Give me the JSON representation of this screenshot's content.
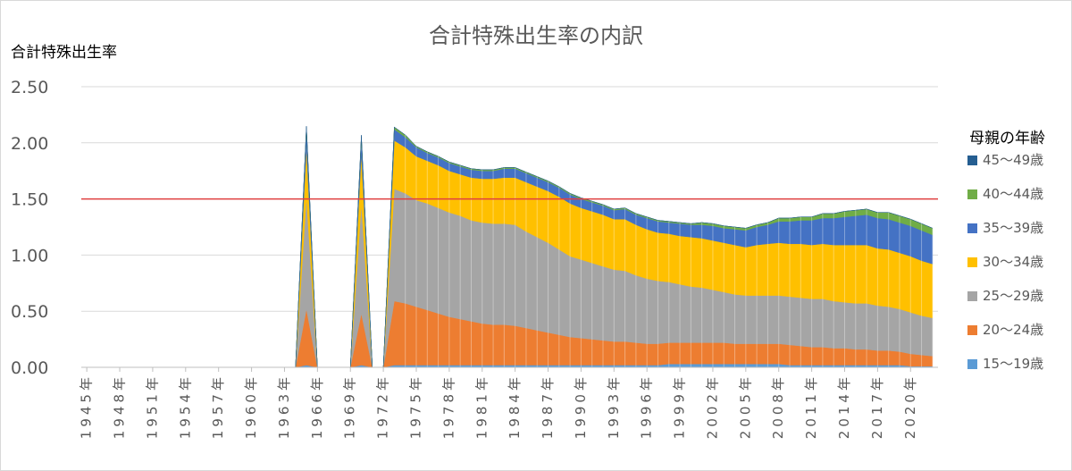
{
  "chart_data": {
    "type": "area",
    "stacked": true,
    "title": "合計特殊出生率の内訳",
    "ylabel": "合計特殊出生率",
    "ylim": [
      0,
      2.5
    ],
    "yticks": [
      "0.00",
      "0.50",
      "1.00",
      "1.50",
      "2.00",
      "2.50"
    ],
    "reference_line": {
      "value": 1.5,
      "color": "#e04040"
    },
    "grid": true,
    "legend_title": "母親の年齢",
    "legend_position": "right",
    "x_start": 1945,
    "x_end": 2022,
    "x_tick_labels": [
      "1945年",
      "1948年",
      "1951年",
      "1954年",
      "1957年",
      "1960年",
      "1963年",
      "1966年",
      "1969年",
      "1972年",
      "1975年",
      "1978年",
      "1981年",
      "1984年",
      "1987年",
      "1990年",
      "1993年",
      "1996年",
      "1999年",
      "2002年",
      "2005年",
      "2008年",
      "2011年",
      "2014年",
      "2017年",
      "2020年"
    ],
    "x_tick_step": 3,
    "data_years": [
      1965,
      1970,
      1973,
      1974,
      1975,
      1976,
      1977,
      1978,
      1979,
      1980,
      1981,
      1982,
      1983,
      1984,
      1985,
      1986,
      1987,
      1988,
      1989,
      1990,
      1991,
      1992,
      1993,
      1994,
      1995,
      1996,
      1997,
      1998,
      1999,
      2000,
      2001,
      2002,
      2003,
      2004,
      2005,
      2006,
      2007,
      2008,
      2009,
      2010,
      2011,
      2012,
      2013,
      2014,
      2015,
      2016,
      2017,
      2018,
      2019,
      2020,
      2021,
      2022
    ],
    "series": [
      {
        "name": "15〜19歳",
        "color": "#5b9bd5",
        "values": [
          0.02,
          0.02,
          0.02,
          0.02,
          0.02,
          0.02,
          0.02,
          0.02,
          0.02,
          0.02,
          0.02,
          0.02,
          0.02,
          0.02,
          0.02,
          0.02,
          0.02,
          0.02,
          0.02,
          0.02,
          0.02,
          0.02,
          0.02,
          0.02,
          0.02,
          0.02,
          0.02,
          0.03,
          0.03,
          0.03,
          0.03,
          0.03,
          0.03,
          0.03,
          0.03,
          0.03,
          0.03,
          0.03,
          0.02,
          0.02,
          0.02,
          0.02,
          0.02,
          0.02,
          0.02,
          0.02,
          0.02,
          0.02,
          0.02,
          0.01,
          0.01,
          0.01
        ]
      },
      {
        "name": "20〜24歳",
        "color": "#ed7d31",
        "values": [
          0.5,
          0.46,
          0.57,
          0.55,
          0.52,
          0.49,
          0.46,
          0.43,
          0.41,
          0.39,
          0.37,
          0.36,
          0.36,
          0.35,
          0.33,
          0.31,
          0.29,
          0.27,
          0.25,
          0.24,
          0.23,
          0.22,
          0.21,
          0.21,
          0.2,
          0.19,
          0.19,
          0.19,
          0.19,
          0.19,
          0.19,
          0.19,
          0.19,
          0.18,
          0.18,
          0.18,
          0.18,
          0.18,
          0.18,
          0.17,
          0.16,
          0.16,
          0.15,
          0.15,
          0.14,
          0.14,
          0.13,
          0.13,
          0.12,
          0.11,
          0.1,
          0.09
        ]
      },
      {
        "name": "25〜29歳",
        "color": "#a5a5a5",
        "values": [
          1.0,
          0.98,
          1.0,
          0.98,
          0.95,
          0.95,
          0.94,
          0.93,
          0.92,
          0.9,
          0.9,
          0.9,
          0.9,
          0.9,
          0.86,
          0.83,
          0.8,
          0.76,
          0.72,
          0.7,
          0.68,
          0.66,
          0.64,
          0.63,
          0.6,
          0.58,
          0.56,
          0.54,
          0.52,
          0.5,
          0.49,
          0.47,
          0.45,
          0.44,
          0.43,
          0.43,
          0.43,
          0.43,
          0.43,
          0.43,
          0.43,
          0.43,
          0.42,
          0.41,
          0.41,
          0.41,
          0.4,
          0.39,
          0.38,
          0.37,
          0.35,
          0.34
        ]
      },
      {
        "name": "30〜34歳",
        "color": "#ffc000",
        "values": [
          0.45,
          0.45,
          0.43,
          0.41,
          0.39,
          0.38,
          0.38,
          0.37,
          0.37,
          0.38,
          0.39,
          0.4,
          0.41,
          0.42,
          0.44,
          0.45,
          0.46,
          0.47,
          0.47,
          0.46,
          0.46,
          0.46,
          0.45,
          0.46,
          0.45,
          0.44,
          0.43,
          0.43,
          0.43,
          0.44,
          0.44,
          0.44,
          0.44,
          0.44,
          0.43,
          0.45,
          0.46,
          0.47,
          0.47,
          0.48,
          0.48,
          0.49,
          0.5,
          0.51,
          0.52,
          0.52,
          0.51,
          0.51,
          0.5,
          0.5,
          0.49,
          0.48
        ]
      },
      {
        "name": "35〜39歳",
        "color": "#4472c4",
        "values": [
          0.15,
          0.13,
          0.1,
          0.09,
          0.08,
          0.07,
          0.07,
          0.07,
          0.07,
          0.07,
          0.07,
          0.07,
          0.08,
          0.08,
          0.08,
          0.08,
          0.08,
          0.08,
          0.08,
          0.08,
          0.08,
          0.08,
          0.08,
          0.09,
          0.09,
          0.1,
          0.1,
          0.1,
          0.11,
          0.11,
          0.12,
          0.13,
          0.13,
          0.14,
          0.15,
          0.16,
          0.17,
          0.19,
          0.2,
          0.21,
          0.22,
          0.23,
          0.24,
          0.25,
          0.26,
          0.27,
          0.27,
          0.27,
          0.27,
          0.27,
          0.27,
          0.26
        ]
      },
      {
        "name": "40〜44歳",
        "color": "#70ad47",
        "values": [
          0.02,
          0.02,
          0.02,
          0.02,
          0.01,
          0.01,
          0.01,
          0.01,
          0.01,
          0.01,
          0.01,
          0.01,
          0.01,
          0.01,
          0.01,
          0.01,
          0.01,
          0.01,
          0.01,
          0.01,
          0.01,
          0.01,
          0.01,
          0.01,
          0.01,
          0.01,
          0.01,
          0.01,
          0.01,
          0.01,
          0.02,
          0.02,
          0.02,
          0.02,
          0.02,
          0.02,
          0.02,
          0.03,
          0.03,
          0.03,
          0.03,
          0.04,
          0.04,
          0.05,
          0.05,
          0.05,
          0.05,
          0.06,
          0.06,
          0.06,
          0.06,
          0.06
        ]
      },
      {
        "name": "45〜49歳",
        "color": "#255e91",
        "values": [
          0.01,
          0.01,
          0.0,
          0.0,
          0.0,
          0.0,
          0.0,
          0.0,
          0.0,
          0.0,
          0.0,
          0.0,
          0.0,
          0.0,
          0.0,
          0.0,
          0.0,
          0.0,
          0.0,
          0.0,
          0.0,
          0.0,
          0.0,
          0.0,
          0.0,
          0.0,
          0.0,
          0.0,
          0.0,
          0.0,
          0.0,
          0.0,
          0.0,
          0.0,
          0.0,
          0.0,
          0.0,
          0.0,
          0.0,
          0.0,
          0.0,
          0.0,
          0.0,
          0.0,
          0.0,
          0.0,
          0.0,
          0.0,
          0.0,
          0.0,
          0.0,
          0.0
        ]
      }
    ]
  }
}
